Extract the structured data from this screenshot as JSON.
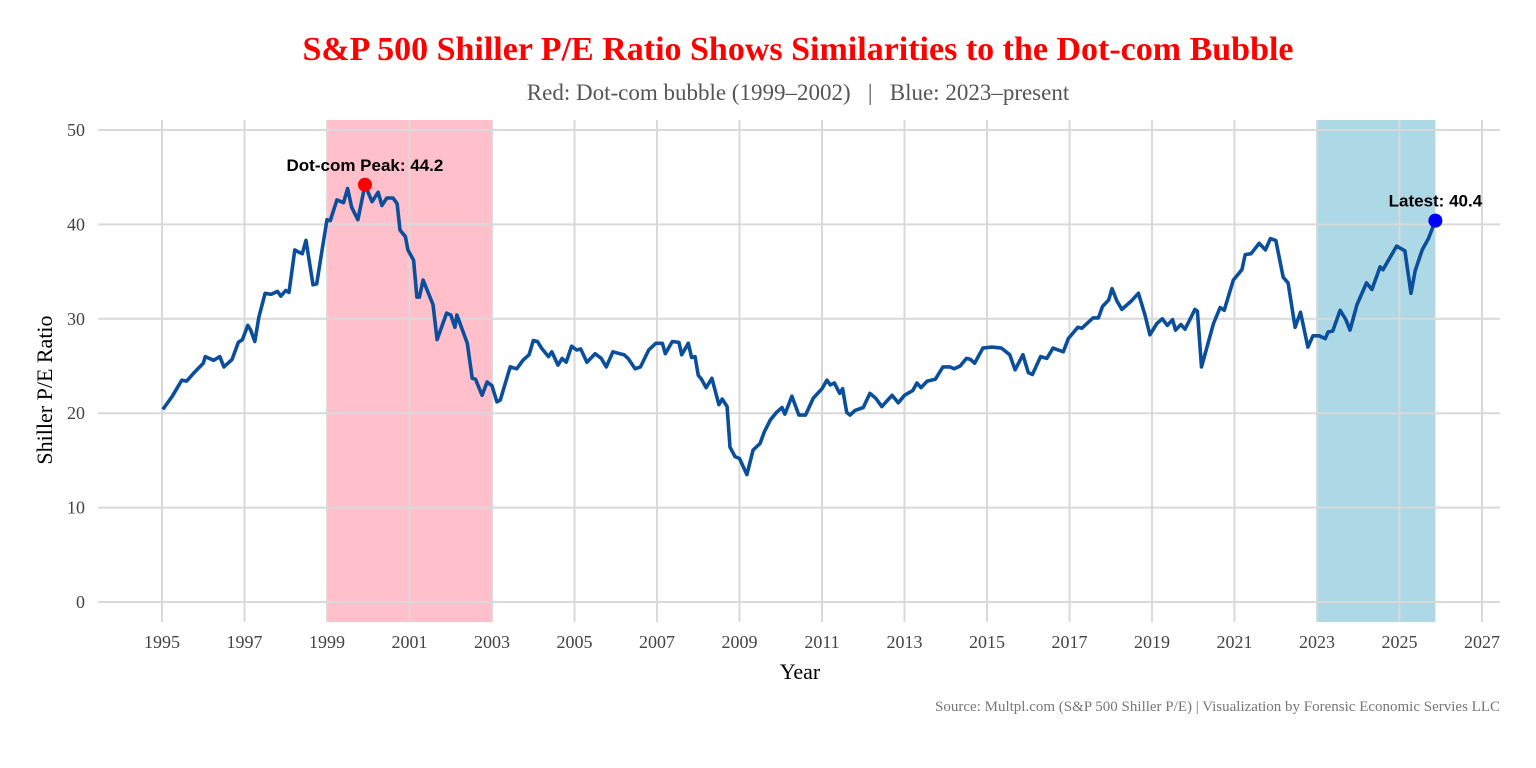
{
  "chart_data": {
    "type": "line",
    "title": "S&P 500 Shiller P/E Ratio Shows Similarities to the Dot-com Bubble",
    "subtitle": "Red: Dot-com bubble (1999–2002)   |   Blue: 2023–present",
    "xlabel": "Year",
    "ylabel": "Shiller P/E Ratio",
    "source": "Source: Multpl.com (S&P 500 Shiller P/E) | Visualization by Forensic Economic Servies LLC",
    "xlim": [
      1993.6,
      2027.4
    ],
    "ylim": [
      -2.5,
      51
    ],
    "x_ticks": [
      "1995",
      "1997",
      "1999",
      "2001",
      "2003",
      "2005",
      "2007",
      "2009",
      "2011",
      "2013",
      "2015",
      "2017",
      "2019",
      "2021",
      "2023",
      "2025",
      "2027"
    ],
    "y_ticks": [
      "0",
      "10",
      "20",
      "30",
      "40",
      "50"
    ],
    "grid": true,
    "line_color": "#0b4f9c",
    "shaded_regions": [
      {
        "start": 1999.0,
        "end": 2003.0,
        "color": "#ffc0cb"
      },
      {
        "start": 2023.0,
        "end": 2025.87,
        "color": "#add8e6"
      }
    ],
    "annotations": [
      {
        "label": "Dot-com Peak: 44.2",
        "x": 1999.92,
        "y": 44.2,
        "color": "#ff0000"
      },
      {
        "label": "Latest: 40.4",
        "x": 2025.87,
        "y": 40.4,
        "color": "#0000ff"
      }
    ],
    "series": [
      {
        "points": [
          [
            1995.02,
            20.4
          ],
          [
            1995.25,
            21.8
          ],
          [
            1995.48,
            23.5
          ],
          [
            1995.6,
            23.4
          ],
          [
            1995.8,
            24.4
          ],
          [
            1996.0,
            25.3
          ],
          [
            1996.05,
            26.0
          ],
          [
            1996.25,
            25.6
          ],
          [
            1996.4,
            26.0
          ],
          [
            1996.5,
            24.9
          ],
          [
            1996.7,
            25.7
          ],
          [
            1996.85,
            27.5
          ],
          [
            1996.95,
            27.8
          ],
          [
            1997.08,
            29.3
          ],
          [
            1997.15,
            28.8
          ],
          [
            1997.25,
            27.6
          ],
          [
            1997.35,
            30.2
          ],
          [
            1997.5,
            32.7
          ],
          [
            1997.65,
            32.6
          ],
          [
            1997.8,
            32.9
          ],
          [
            1997.88,
            32.4
          ],
          [
            1998.0,
            33.0
          ],
          [
            1998.08,
            32.8
          ],
          [
            1998.22,
            37.3
          ],
          [
            1998.3,
            37.1
          ],
          [
            1998.4,
            36.9
          ],
          [
            1998.49,
            38.3
          ],
          [
            1998.66,
            33.6
          ],
          [
            1998.75,
            33.7
          ],
          [
            1998.88,
            37.3
          ],
          [
            1999.0,
            40.5
          ],
          [
            1999.08,
            40.4
          ],
          [
            1999.24,
            42.6
          ],
          [
            1999.4,
            42.3
          ],
          [
            1999.5,
            43.8
          ],
          [
            1999.6,
            41.8
          ],
          [
            1999.75,
            40.5
          ],
          [
            1999.92,
            44.2
          ],
          [
            2000.09,
            42.4
          ],
          [
            2000.24,
            43.4
          ],
          [
            2000.33,
            42.0
          ],
          [
            2000.45,
            42.8
          ],
          [
            2000.6,
            42.8
          ],
          [
            2000.7,
            42.2
          ],
          [
            2000.77,
            39.4
          ],
          [
            2000.9,
            38.7
          ],
          [
            2000.96,
            37.3
          ],
          [
            2001.1,
            36.2
          ],
          [
            2001.18,
            32.3
          ],
          [
            2001.24,
            32.3
          ],
          [
            2001.33,
            34.1
          ],
          [
            2001.57,
            31.5
          ],
          [
            2001.67,
            27.8
          ],
          [
            2001.9,
            30.6
          ],
          [
            2002.0,
            30.4
          ],
          [
            2002.1,
            29.1
          ],
          [
            2002.15,
            30.4
          ],
          [
            2002.4,
            27.4
          ],
          [
            2002.52,
            23.7
          ],
          [
            2002.6,
            23.6
          ],
          [
            2002.76,
            21.9
          ],
          [
            2002.88,
            23.3
          ],
          [
            2003.0,
            22.9
          ],
          [
            2003.12,
            21.2
          ],
          [
            2003.2,
            21.4
          ],
          [
            2003.44,
            24.9
          ],
          [
            2003.6,
            24.7
          ],
          [
            2003.75,
            25.6
          ],
          [
            2003.9,
            26.2
          ],
          [
            2004.0,
            27.7
          ],
          [
            2004.1,
            27.6
          ],
          [
            2004.2,
            26.9
          ],
          [
            2004.37,
            26.0
          ],
          [
            2004.45,
            26.5
          ],
          [
            2004.6,
            25.1
          ],
          [
            2004.7,
            25.8
          ],
          [
            2004.8,
            25.4
          ],
          [
            2004.93,
            27.1
          ],
          [
            2005.05,
            26.7
          ],
          [
            2005.15,
            26.8
          ],
          [
            2005.3,
            25.4
          ],
          [
            2005.5,
            26.3
          ],
          [
            2005.65,
            25.8
          ],
          [
            2005.77,
            24.9
          ],
          [
            2005.93,
            26.5
          ],
          [
            2006.1,
            26.3
          ],
          [
            2006.2,
            26.2
          ],
          [
            2006.3,
            25.8
          ],
          [
            2006.47,
            24.7
          ],
          [
            2006.6,
            24.9
          ],
          [
            2006.8,
            26.7
          ],
          [
            2006.97,
            27.4
          ],
          [
            2007.13,
            27.4
          ],
          [
            2007.2,
            26.3
          ],
          [
            2007.37,
            27.6
          ],
          [
            2007.53,
            27.5
          ],
          [
            2007.6,
            26.2
          ],
          [
            2007.76,
            27.4
          ],
          [
            2007.84,
            25.9
          ],
          [
            2007.92,
            26.0
          ],
          [
            2008.0,
            24.0
          ],
          [
            2008.08,
            23.6
          ],
          [
            2008.19,
            22.7
          ],
          [
            2008.33,
            23.7
          ],
          [
            2008.5,
            20.9
          ],
          [
            2008.58,
            21.5
          ],
          [
            2008.7,
            20.7
          ],
          [
            2008.77,
            16.4
          ],
          [
            2008.89,
            15.4
          ],
          [
            2009.0,
            15.2
          ],
          [
            2009.18,
            13.5
          ],
          [
            2009.33,
            16.1
          ],
          [
            2009.5,
            16.8
          ],
          [
            2009.6,
            18.0
          ],
          [
            2009.75,
            19.3
          ],
          [
            2009.9,
            20.1
          ],
          [
            2010.03,
            20.6
          ],
          [
            2010.1,
            19.9
          ],
          [
            2010.27,
            21.8
          ],
          [
            2010.44,
            19.8
          ],
          [
            2010.6,
            19.8
          ],
          [
            2010.79,
            21.6
          ],
          [
            2011.0,
            22.6
          ],
          [
            2011.12,
            23.5
          ],
          [
            2011.2,
            23.0
          ],
          [
            2011.3,
            23.2
          ],
          [
            2011.43,
            22.1
          ],
          [
            2011.5,
            22.6
          ],
          [
            2011.6,
            20.1
          ],
          [
            2011.68,
            19.8
          ],
          [
            2011.8,
            20.3
          ],
          [
            2012.0,
            20.6
          ],
          [
            2012.16,
            22.1
          ],
          [
            2012.3,
            21.6
          ],
          [
            2012.45,
            20.7
          ],
          [
            2012.7,
            21.9
          ],
          [
            2012.85,
            21.1
          ],
          [
            2013.0,
            21.9
          ],
          [
            2013.2,
            22.4
          ],
          [
            2013.3,
            23.2
          ],
          [
            2013.4,
            22.7
          ],
          [
            2013.55,
            23.4
          ],
          [
            2013.75,
            23.6
          ],
          [
            2013.93,
            24.9
          ],
          [
            2014.1,
            24.9
          ],
          [
            2014.2,
            24.7
          ],
          [
            2014.35,
            25.0
          ],
          [
            2014.5,
            25.8
          ],
          [
            2014.6,
            25.7
          ],
          [
            2014.7,
            25.3
          ],
          [
            2014.9,
            26.9
          ],
          [
            2015.12,
            27.0
          ],
          [
            2015.35,
            26.9
          ],
          [
            2015.55,
            26.2
          ],
          [
            2015.68,
            24.6
          ],
          [
            2015.87,
            26.2
          ],
          [
            2016.0,
            24.3
          ],
          [
            2016.1,
            24.1
          ],
          [
            2016.3,
            26.0
          ],
          [
            2016.45,
            25.8
          ],
          [
            2016.6,
            26.9
          ],
          [
            2016.85,
            26.5
          ],
          [
            2016.97,
            27.9
          ],
          [
            2017.2,
            29.1
          ],
          [
            2017.3,
            29.0
          ],
          [
            2017.57,
            30.1
          ],
          [
            2017.7,
            30.1
          ],
          [
            2017.8,
            31.3
          ],
          [
            2017.95,
            32.0
          ],
          [
            2018.03,
            33.2
          ],
          [
            2018.15,
            31.9
          ],
          [
            2018.27,
            31.0
          ],
          [
            2018.5,
            31.9
          ],
          [
            2018.67,
            32.7
          ],
          [
            2018.83,
            30.4
          ],
          [
            2018.95,
            28.3
          ],
          [
            2019.12,
            29.5
          ],
          [
            2019.25,
            30.0
          ],
          [
            2019.37,
            29.3
          ],
          [
            2019.5,
            29.9
          ],
          [
            2019.57,
            28.8
          ],
          [
            2019.7,
            29.4
          ],
          [
            2019.8,
            28.9
          ],
          [
            2019.95,
            30.2
          ],
          [
            2020.04,
            31.0
          ],
          [
            2020.1,
            30.8
          ],
          [
            2020.2,
            24.9
          ],
          [
            2020.49,
            29.5
          ],
          [
            2020.65,
            31.2
          ],
          [
            2020.75,
            30.9
          ],
          [
            2020.97,
            34.1
          ],
          [
            2021.18,
            35.2
          ],
          [
            2021.26,
            36.8
          ],
          [
            2021.4,
            36.9
          ],
          [
            2021.6,
            38.0
          ],
          [
            2021.75,
            37.3
          ],
          [
            2021.87,
            38.5
          ],
          [
            2022.0,
            38.3
          ],
          [
            2022.18,
            34.4
          ],
          [
            2022.3,
            33.8
          ],
          [
            2022.47,
            29.1
          ],
          [
            2022.6,
            30.7
          ],
          [
            2022.78,
            27.0
          ],
          [
            2022.9,
            28.2
          ],
          [
            2023.05,
            28.2
          ],
          [
            2023.2,
            27.9
          ],
          [
            2023.27,
            28.6
          ],
          [
            2023.38,
            28.7
          ],
          [
            2023.56,
            30.9
          ],
          [
            2023.7,
            29.9
          ],
          [
            2023.8,
            28.8
          ],
          [
            2023.97,
            31.5
          ],
          [
            2024.2,
            33.8
          ],
          [
            2024.33,
            33.1
          ],
          [
            2024.53,
            35.5
          ],
          [
            2024.6,
            35.2
          ],
          [
            2024.93,
            37.7
          ],
          [
            2025.13,
            37.2
          ],
          [
            2025.28,
            32.7
          ],
          [
            2025.38,
            35.1
          ],
          [
            2025.55,
            37.3
          ],
          [
            2025.7,
            38.5
          ],
          [
            2025.87,
            40.4
          ]
        ]
      }
    ]
  }
}
